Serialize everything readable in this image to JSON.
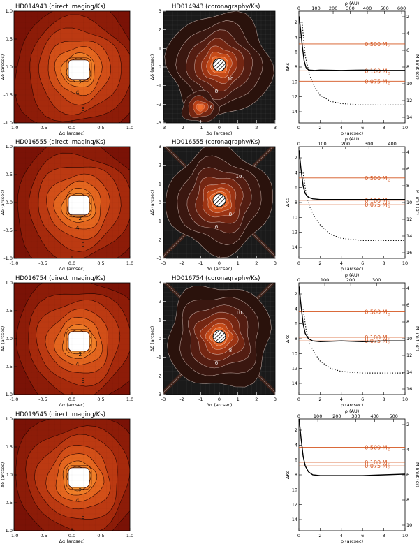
{
  "figure": {
    "rows": [
      {
        "target": "HD014943",
        "direct_title": "HD014943 (direct imaging/Ks)",
        "corono_title": "HD014943 (coronagraphy/Ks)",
        "direct_contours": [
          "2",
          "4",
          "6"
        ],
        "corono_contours": [
          "6",
          "10",
          "8"
        ],
        "has_companion": true,
        "au_ticks": [
          "0",
          "100",
          "200",
          "300",
          "400",
          "500",
          "600"
        ],
        "au_max": 620,
        "mass_labels": [
          {
            "text": "0.500 M",
            "dks": 4.9
          },
          {
            "text": "0.100 M",
            "dks": 8.5
          },
          {
            "text": "0.075 M",
            "dks": 9.9
          }
        ],
        "right_ticks": [
          "2",
          "4",
          "6",
          "8",
          "10",
          "12",
          "14"
        ],
        "solid": [
          [
            0.02,
            1.2
          ],
          [
            0.2,
            3.5
          ],
          [
            0.35,
            5.5
          ],
          [
            0.5,
            7.2
          ],
          [
            0.7,
            8.2
          ],
          [
            1.0,
            8.4
          ],
          [
            1.5,
            8.45
          ],
          [
            2,
            8.4
          ],
          [
            4,
            8.45
          ],
          [
            6,
            8.4
          ],
          [
            8,
            8.45
          ],
          [
            10,
            8.45
          ]
        ],
        "dotted": [
          [
            0.3,
            2.0
          ],
          [
            0.6,
            6.5
          ],
          [
            1.0,
            9.0
          ],
          [
            1.5,
            10.8
          ],
          [
            2,
            11.8
          ],
          [
            3,
            12.6
          ],
          [
            4,
            12.9
          ],
          [
            6,
            13.1
          ],
          [
            8,
            13.1
          ],
          [
            10,
            13.1
          ]
        ]
      },
      {
        "target": "HD016555",
        "direct_title": "HD016555 (direct imaging/Ks)",
        "corono_title": "HD016555 (coronagraphy/Ks)",
        "direct_contours": [
          "2",
          "4",
          "6"
        ],
        "corono_contours": [
          "10",
          "8",
          "6"
        ],
        "has_companion": false,
        "au_ticks": [
          "0",
          "100",
          "200",
          "300",
          "400"
        ],
        "au_max": 455,
        "mass_labels": [
          {
            "text": "0.500 M",
            "dks": 4.7
          },
          {
            "text": "0.100 M",
            "dks": 7.7
          },
          {
            "text": "0.075 M",
            "dks": 8.3
          }
        ],
        "right_ticks": [
          "4",
          "6",
          "8",
          "10",
          "12",
          "14",
          "16"
        ],
        "solid": [
          [
            0.02,
            1.0
          ],
          [
            0.2,
            3.5
          ],
          [
            0.4,
            5.8
          ],
          [
            0.6,
            6.8
          ],
          [
            0.9,
            7.3
          ],
          [
            1.3,
            7.5
          ],
          [
            2,
            7.6
          ],
          [
            4,
            7.6
          ],
          [
            6,
            7.6
          ],
          [
            8,
            7.6
          ],
          [
            10,
            7.6
          ]
        ],
        "dotted": [
          [
            0.4,
            4.0
          ],
          [
            0.7,
            7.0
          ],
          [
            1.0,
            8.5
          ],
          [
            1.5,
            10.0
          ],
          [
            2,
            11.0
          ],
          [
            3,
            12.3
          ],
          [
            4,
            12.8
          ],
          [
            6,
            13.1
          ],
          [
            8,
            13.1
          ],
          [
            10,
            13.1
          ]
        ]
      },
      {
        "target": "HD016754",
        "direct_title": "HD016754 (direct imaging/Ks)",
        "corono_title": "HD016754 (coronagraphy/Ks)",
        "direct_contours": [
          "2",
          "4",
          "6"
        ],
        "corono_contours": [
          "10",
          "8",
          "6"
        ],
        "has_companion": false,
        "au_ticks": [
          "0",
          "100",
          "200",
          "300"
        ],
        "au_max": 410,
        "mass_labels": [
          {
            "text": "0.500 M",
            "dks": 4.4
          },
          {
            "text": "0.100 M",
            "dks": 7.8
          },
          {
            "text": "0.075 M",
            "dks": 8.3
          }
        ],
        "right_ticks": [
          "4",
          "6",
          "8",
          "10",
          "12",
          "14",
          "16"
        ],
        "solid": [
          [
            0.02,
            1.0
          ],
          [
            0.2,
            3.5
          ],
          [
            0.4,
            6.0
          ],
          [
            0.6,
            7.3
          ],
          [
            0.9,
            8.0
          ],
          [
            1.3,
            8.3
          ],
          [
            2,
            8.4
          ],
          [
            4,
            8.3
          ],
          [
            6,
            8.4
          ],
          [
            8,
            8.3
          ],
          [
            10,
            8.3
          ]
        ],
        "dotted": [
          [
            0.4,
            4.0
          ],
          [
            0.7,
            7.0
          ],
          [
            1.0,
            8.6
          ],
          [
            1.5,
            10.0
          ],
          [
            2,
            11.0
          ],
          [
            3,
            12.0
          ],
          [
            4,
            12.4
          ],
          [
            6,
            12.6
          ],
          [
            8,
            12.6
          ],
          [
            10,
            12.6
          ]
        ]
      },
      {
        "target": "HD019545",
        "direct_title": "HD019545 (direct imaging/Ks)",
        "corono_title": "",
        "direct_contours": [
          "2",
          "4",
          "6"
        ],
        "corono_contours": [],
        "has_companion": false,
        "au_ticks": [
          "0",
          "100",
          "200",
          "300",
          "400",
          "500"
        ],
        "au_max": 560,
        "mass_labels": [
          {
            "text": "0.500 M",
            "dks": 4.3
          },
          {
            "text": "0.100 M",
            "dks": 6.3
          },
          {
            "text": "0.075 M",
            "dks": 6.8
          }
        ],
        "right_ticks": [
          "2",
          "4",
          "6",
          "8",
          "10"
        ],
        "solid": [
          [
            0.02,
            0.5
          ],
          [
            0.2,
            3.0
          ],
          [
            0.4,
            5.5
          ],
          [
            0.6,
            6.8
          ],
          [
            0.9,
            7.6
          ],
          [
            1.3,
            8.0
          ],
          [
            2,
            8.1
          ],
          [
            4,
            8.1
          ],
          [
            6,
            8.1
          ],
          [
            8,
            8.0
          ],
          [
            10,
            7.9
          ]
        ],
        "dotted": []
      }
    ],
    "axes": {
      "dalpha_label": "Δα (arcsec)",
      "ddelta_label": "Δδ (arcsec)",
      "rho_label": "ρ (arcsec)",
      "rho_au_label": "ρ (AU)",
      "dks_label": "ΔKs",
      "mass_limit_label": "M limit (dr)",
      "direct_xticks": [
        "-1.0",
        "-0.5",
        "0.0",
        "0.5",
        "1.0"
      ],
      "direct_yticks": [
        "-1.0",
        "-0.5",
        "0.0",
        "0.5",
        "1.0"
      ],
      "corono_xticks": [
        "-3",
        "-2",
        "-1",
        "0",
        "1",
        "2",
        "3"
      ],
      "corono_yticks": [
        "-3",
        "-2",
        "-1",
        "0",
        "1",
        "2",
        "3"
      ],
      "rho_ticks": [
        "0",
        "2",
        "4",
        "6",
        "8",
        "10"
      ],
      "dks_ticks": [
        "2",
        "4",
        "6",
        "8",
        "10",
        "12",
        "14"
      ]
    },
    "colors": {
      "sensitivity": "#d4541e",
      "deep": "#701005",
      "dark_bg": "#1a1a1a"
    }
  }
}
